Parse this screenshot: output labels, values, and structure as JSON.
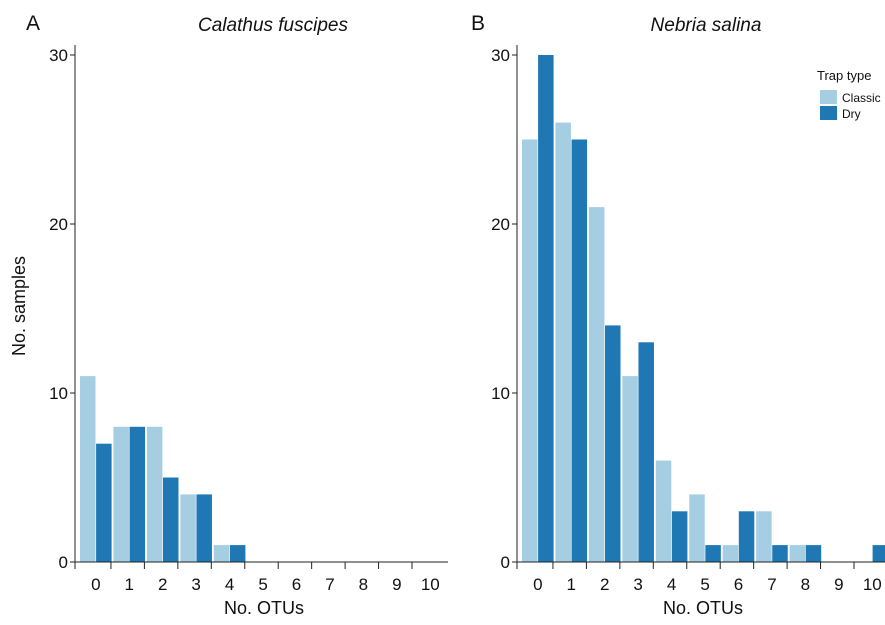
{
  "chart_data": [
    {
      "type": "bar",
      "panel": "A",
      "title": "Calathus fuscipes",
      "xlabel": "No. OTUs",
      "ylabel": "No. samples",
      "categories": [
        "0",
        "1",
        "2",
        "3",
        "4",
        "5",
        "6",
        "7",
        "8",
        "9",
        "10"
      ],
      "ylim": [
        0,
        30
      ],
      "yticks": [
        0,
        10,
        20,
        30
      ],
      "series": [
        {
          "name": "Classic",
          "color": "#a6cee3",
          "values": [
            11,
            8,
            8,
            4,
            1,
            0,
            0,
            0,
            0,
            0,
            0
          ]
        },
        {
          "name": "Dry",
          "color": "#1f78b4",
          "values": [
            7,
            8,
            5,
            4,
            1,
            0,
            0,
            0,
            0,
            0,
            0
          ]
        }
      ]
    },
    {
      "type": "bar",
      "panel": "B",
      "title": "Nebria salina",
      "xlabel": "No. OTUs",
      "ylabel": "",
      "categories": [
        "0",
        "1",
        "2",
        "3",
        "4",
        "5",
        "6",
        "7",
        "8",
        "9",
        "10"
      ],
      "ylim": [
        0,
        30
      ],
      "yticks": [
        0,
        10,
        20,
        30
      ],
      "series": [
        {
          "name": "Classic",
          "color": "#a6cee3",
          "values": [
            25,
            26,
            21,
            11,
            6,
            4,
            1,
            3,
            1,
            0,
            0
          ]
        },
        {
          "name": "Dry",
          "color": "#1f78b4",
          "values": [
            30,
            25,
            14,
            13,
            3,
            1,
            3,
            1,
            1,
            0,
            1
          ]
        }
      ]
    }
  ],
  "legend": {
    "title": "Trap type",
    "placement": "top-right",
    "items": [
      {
        "label": "Classic",
        "color": "#a6cee3"
      },
      {
        "label": "Dry",
        "color": "#1f78b4"
      }
    ]
  }
}
